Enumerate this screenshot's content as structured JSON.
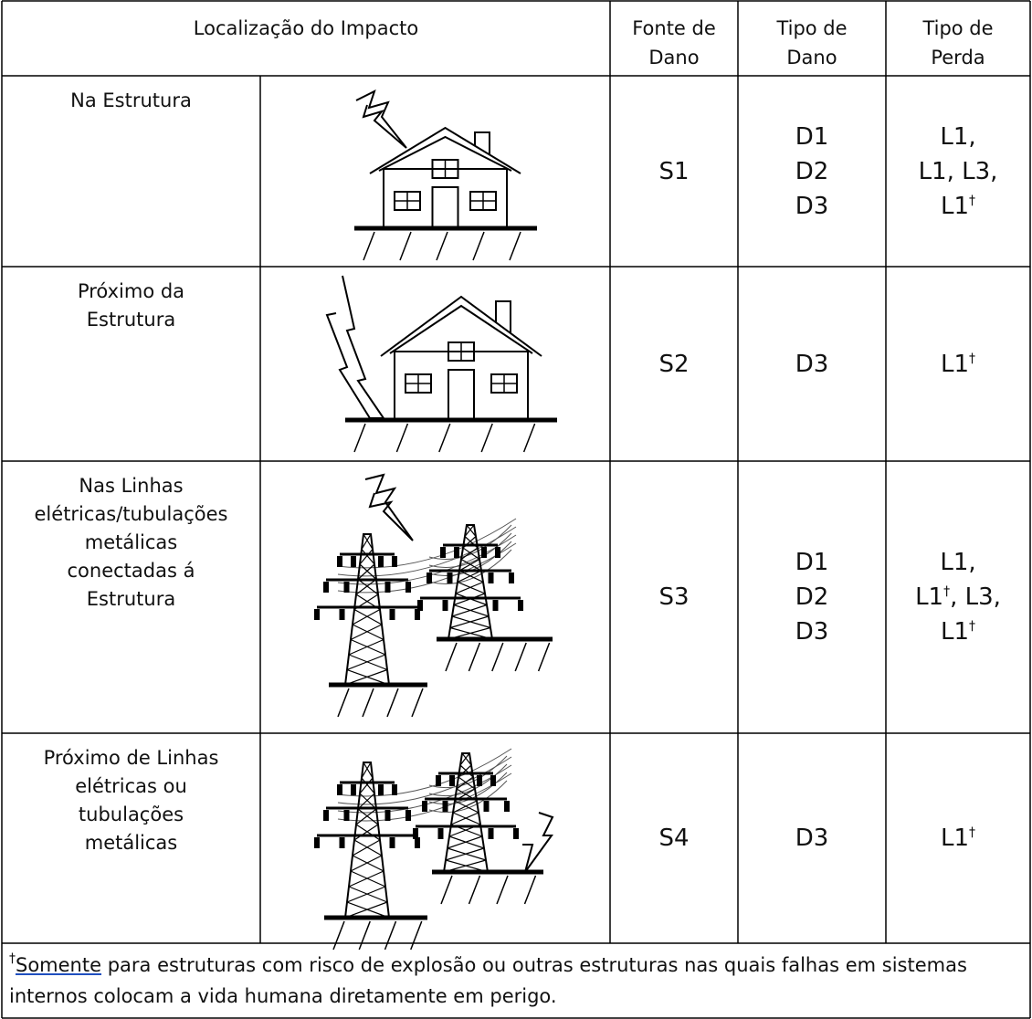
{
  "header": {
    "location": [
      "Localização do Impacto"
    ],
    "source": [
      "Fonte de",
      "Dano"
    ],
    "damage": [
      "Tipo de",
      "Dano"
    ],
    "loss": [
      "Tipo de",
      "Perda"
    ]
  },
  "rows": [
    {
      "location": [
        "Na Estrutura"
      ],
      "source": "S1",
      "damage": [
        "D1",
        "D2",
        "D3"
      ],
      "loss": [
        [
          {
            "text": "L1,"
          }
        ],
        [
          {
            "text": "L1, L3,"
          }
        ],
        [
          {
            "text": "L1"
          },
          {
            "sup": "†"
          }
        ]
      ]
    },
    {
      "location": [
        "Próximo da",
        "Estrutura"
      ],
      "source": "S2",
      "damage": [
        "D3"
      ],
      "loss": [
        [
          {
            "text": "L1"
          },
          {
            "sup": "†"
          }
        ]
      ]
    },
    {
      "location": [
        "Nas Linhas",
        "elétricas/tubulações",
        "metálicas",
        "conectadas á",
        "Estrutura"
      ],
      "source": "S3",
      "damage": [
        "D1",
        "D2",
        "D3"
      ],
      "loss": [
        [
          {
            "text": "L1,"
          }
        ],
        [
          {
            "text": "L1"
          },
          {
            "sup": "†"
          },
          {
            "text": ", L3,"
          }
        ],
        [
          {
            "text": "L1"
          },
          {
            "sup": "†"
          }
        ]
      ]
    },
    {
      "location": [
        "Próximo de Linhas",
        "elétricas ou",
        "tubulações",
        "metálicas"
      ],
      "source": "S4",
      "damage": [
        "D3"
      ],
      "loss": [
        [
          {
            "text": "L1"
          },
          {
            "sup": "†"
          }
        ]
      ]
    }
  ],
  "footnote": {
    "mark": "†",
    "underlined": "Somente",
    "text": " para estruturas com risco de explosão ou outras estruturas nas quais falhas em sistemas internos colocam a vida humana diretamente em perigo."
  }
}
